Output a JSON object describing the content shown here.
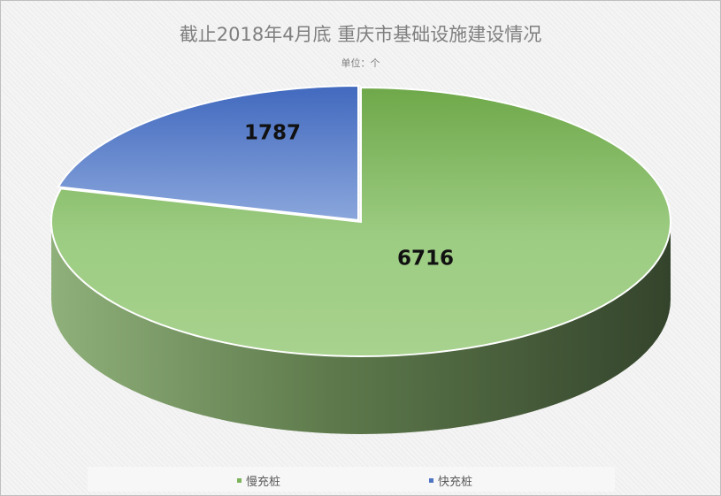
{
  "chart_data": {
    "type": "pie",
    "title": "截止2018年4月底 重庆市基础设施建设情况",
    "subtitle": "单位：个",
    "slices": [
      {
        "name": "慢充桩",
        "value": 6716,
        "color": "#9ccc82"
      },
      {
        "name": "快充桩",
        "value": 1787,
        "color": "#7f9ed8"
      }
    ],
    "legend_position": "bottom"
  }
}
